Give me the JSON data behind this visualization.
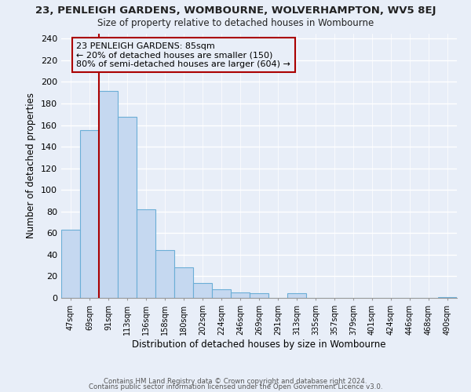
{
  "title": "23, PENLEIGH GARDENS, WOMBOURNE, WOLVERHAMPTON, WV5 8EJ",
  "subtitle": "Size of property relative to detached houses in Wombourne",
  "xlabel": "Distribution of detached houses by size in Wombourne",
  "ylabel": "Number of detached properties",
  "bar_labels": [
    "47sqm",
    "69sqm",
    "91sqm",
    "113sqm",
    "136sqm",
    "158sqm",
    "180sqm",
    "202sqm",
    "224sqm",
    "246sqm",
    "269sqm",
    "291sqm",
    "313sqm",
    "335sqm",
    "357sqm",
    "379sqm",
    "401sqm",
    "424sqm",
    "446sqm",
    "468sqm",
    "490sqm"
  ],
  "bar_values": [
    63,
    155,
    192,
    168,
    82,
    44,
    28,
    14,
    8,
    5,
    4,
    0,
    4,
    0,
    0,
    0,
    0,
    0,
    0,
    0,
    1
  ],
  "bar_color": "#c5d8f0",
  "bar_edge_color": "#6baed6",
  "vline_color": "#aa0000",
  "annotation_title": "23 PENLEIGH GARDENS: 85sqm",
  "annotation_line1": "← 20% of detached houses are smaller (150)",
  "annotation_line2": "80% of semi-detached houses are larger (604) →",
  "annotation_box_edge": "#aa0000",
  "ylim": [
    0,
    245
  ],
  "yticks": [
    0,
    20,
    40,
    60,
    80,
    100,
    120,
    140,
    160,
    180,
    200,
    220,
    240
  ],
  "footer1": "Contains HM Land Registry data © Crown copyright and database right 2024.",
  "footer2": "Contains public sector information licensed under the Open Government Licence v3.0.",
  "bg_color": "#e8eef8",
  "plot_bg_color": "#e8eef8",
  "grid_color": "#ffffff"
}
